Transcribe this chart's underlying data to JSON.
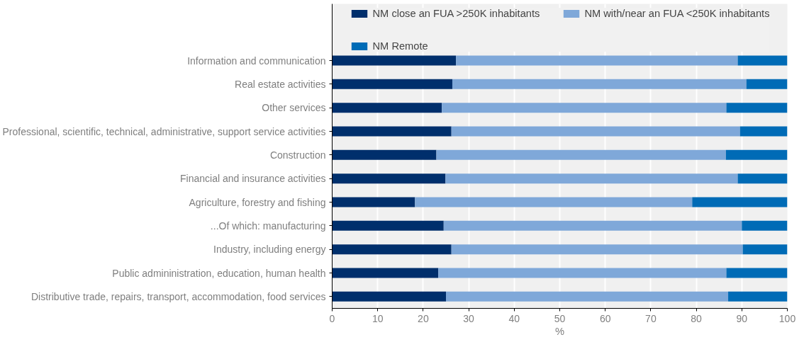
{
  "chart_data": {
    "type": "bar",
    "orientation": "horizontal",
    "stacked": true,
    "categories": [
      "Information and communication",
      "Real estate activities",
      "Other services",
      "Professional, scientific, technical, administrative, support service activities",
      "Construction",
      "Financial and insurance activities",
      "Agriculture, forestry and fishing",
      "...Of which: manufacturing",
      "Industry, including energy",
      "Public admininistration, education, human health",
      "Distributive trade, repairs, transport, accommodation, food services"
    ],
    "series": [
      {
        "name": "NM close an FUA >250K inhabitants",
        "color": "#002f6c",
        "values": [
          27.2,
          26.4,
          24.1,
          26.2,
          22.9,
          24.9,
          18.2,
          24.5,
          26.2,
          23.3,
          25.0
        ]
      },
      {
        "name": "NM with/near an FUA <250K inhabitants",
        "color": "#7fa8d9",
        "values": [
          61.9,
          64.6,
          62.5,
          63.4,
          63.6,
          64.2,
          60.9,
          65.5,
          64.0,
          63.3,
          62.0
        ]
      },
      {
        "name": "NM Remote",
        "color": "#006bb6",
        "values": [
          10.9,
          9.0,
          13.4,
          10.4,
          13.5,
          10.9,
          20.9,
          10.0,
          9.8,
          13.4,
          13.0
        ]
      }
    ],
    "xlim": [
      0,
      100
    ],
    "xticks": [
      0,
      10,
      20,
      30,
      40,
      50,
      60,
      70,
      80,
      90,
      100
    ],
    "xlabel": "%",
    "grid": "x",
    "legend": "top"
  }
}
